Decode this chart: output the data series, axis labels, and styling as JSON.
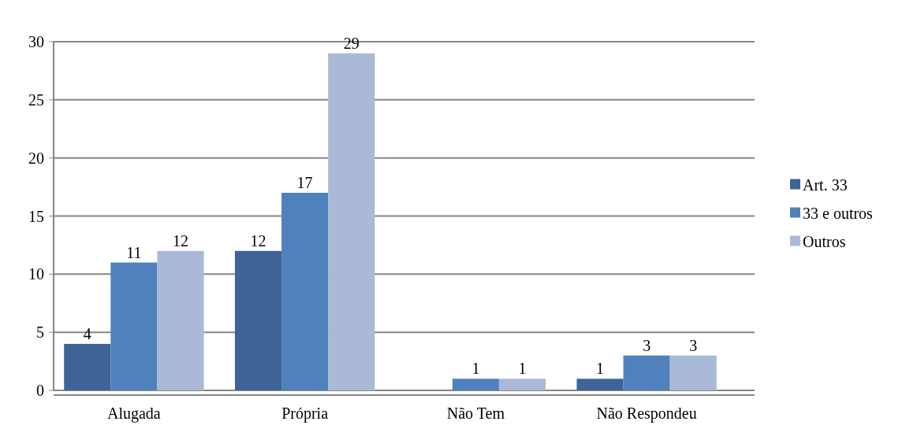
{
  "chart_data": {
    "type": "bar",
    "categories": [
      "Alugada",
      "Própria",
      "Não Tem",
      "Não Respondeu"
    ],
    "series": [
      {
        "name": "Art. 33",
        "color": "#3e6497",
        "values": [
          4,
          12,
          null,
          1
        ]
      },
      {
        "name": "33 e outros",
        "color": "#4f81bd",
        "values": [
          11,
          17,
          1,
          3
        ]
      },
      {
        "name": "Outros",
        "color": "#aab9d7",
        "values": [
          12,
          29,
          1,
          3
        ]
      }
    ],
    "ylim": [
      0,
      30
    ],
    "yticks": [
      0,
      5,
      10,
      15,
      20,
      25,
      30
    ],
    "grid": "y",
    "legend": "right",
    "data_labels": true
  }
}
